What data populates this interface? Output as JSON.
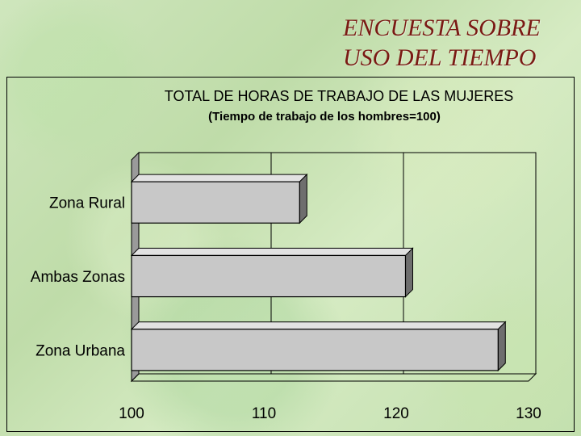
{
  "slide_title": {
    "line1": "ENCUESTA SOBRE",
    "line2": "USO DEL TIEMPO"
  },
  "chart_data": {
    "type": "bar",
    "orientation": "horizontal",
    "title": "TOTAL DE HORAS DE TRABAJO DE LAS MUJERES",
    "subtitle": "(Tiempo de trabajo de los hombres=100)",
    "categories": [
      "Zona Rural",
      "Ambas Zonas",
      "Zona Urbana"
    ],
    "values": [
      112.7,
      120.7,
      127.7
    ],
    "xlim": [
      100,
      130
    ],
    "xticks": [
      "100",
      "110",
      "120",
      "130"
    ],
    "grid": true,
    "legend": "none",
    "colors": {
      "bar_face": "#c8c8c8",
      "bar_side": "#6e6e6e",
      "plot_back": "#9a9a9a"
    }
  }
}
